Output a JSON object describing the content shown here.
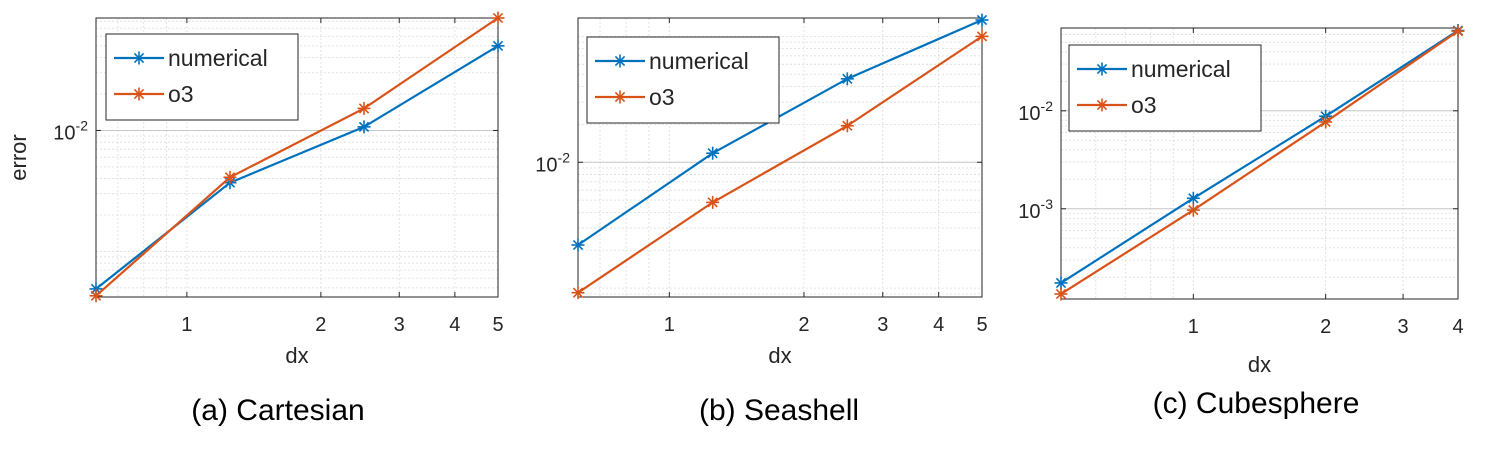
{
  "chart_data": [
    {
      "type": "line",
      "caption": "(a) Cartesian",
      "xlabel": "dx",
      "ylabel": "error",
      "xscale": "log",
      "yscale": "log",
      "xlim": [
        0.625,
        5
      ],
      "ylim": [
        0.00042,
        0.085
      ],
      "xticks": [
        1,
        2,
        3,
        4,
        5
      ],
      "xtick_labels": [
        "1",
        "2",
        "3",
        "4",
        "5"
      ],
      "yticks": [
        0.01
      ],
      "ytick_labels": [
        {
          "base": "10",
          "exp": "-2"
        }
      ],
      "grid": true,
      "legend_position": "top-left",
      "series": [
        {
          "name": "numerical",
          "color": "#0072BD",
          "x": [
            0.625,
            1.25,
            2.5,
            5
          ],
          "y": [
            0.00049,
            0.0037,
            0.0107,
            0.05
          ]
        },
        {
          "name": "o3",
          "color": "#D95319",
          "x": [
            0.625,
            1.25,
            2.5,
            5
          ],
          "y": [
            0.00043,
            0.0041,
            0.0152,
            0.085
          ]
        }
      ]
    },
    {
      "type": "line",
      "caption": "(b) Seashell",
      "xlabel": "dx",
      "ylabel": "",
      "xscale": "log",
      "yscale": "log",
      "xlim": [
        0.625,
        5
      ],
      "ylim": [
        0.00085,
        0.14
      ],
      "xticks": [
        1,
        2,
        3,
        4,
        5
      ],
      "xtick_labels": [
        "1",
        "2",
        "3",
        "4",
        "5"
      ],
      "yticks": [
        0.01
      ],
      "ytick_labels": [
        {
          "base": "10",
          "exp": "-2"
        }
      ],
      "grid": true,
      "legend_position": "top-left",
      "series": [
        {
          "name": "numerical",
          "color": "#0072BD",
          "x": [
            0.625,
            1.25,
            2.5,
            5
          ],
          "y": [
            0.0022,
            0.0118,
            0.046,
            0.135
          ]
        },
        {
          "name": "o3",
          "color": "#D95319",
          "x": [
            0.625,
            1.25,
            2.5,
            5
          ],
          "y": [
            0.00092,
            0.0048,
            0.0195,
            0.1
          ]
        }
      ]
    },
    {
      "type": "line",
      "caption": "(c) Cubesphere",
      "xlabel": "dx",
      "ylabel": "",
      "xscale": "log",
      "yscale": "log",
      "xlim": [
        0.5,
        4
      ],
      "ylim": [
        0.00012,
        0.07
      ],
      "xticks": [
        1,
        2,
        3,
        4
      ],
      "xtick_labels": [
        "1",
        "2",
        "3",
        "4"
      ],
      "yticks": [
        0.01,
        0.001
      ],
      "ytick_labels": [
        {
          "base": "10",
          "exp": "-2"
        },
        {
          "base": "10",
          "exp": "-3"
        }
      ],
      "grid": true,
      "legend_position": "top-left",
      "series": [
        {
          "name": "numerical",
          "color": "#0072BD",
          "x": [
            0.5,
            1,
            2,
            4
          ],
          "y": [
            0.000175,
            0.00128,
            0.0088,
            0.066
          ]
        },
        {
          "name": "o3",
          "color": "#D95319",
          "x": [
            0.5,
            1,
            2,
            4
          ],
          "y": [
            0.000135,
            0.00097,
            0.0077,
            0.065
          ]
        }
      ]
    }
  ]
}
